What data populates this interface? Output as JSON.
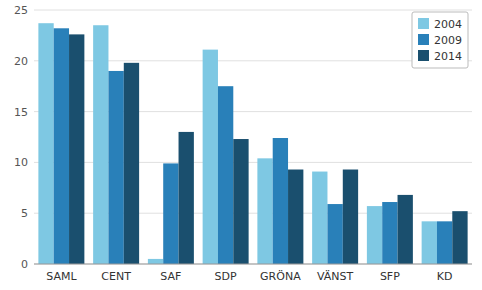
{
  "chart_data": {
    "type": "bar",
    "categories": [
      "SAML",
      "CENT",
      "SAF",
      "SDP",
      "GRÖNA",
      "VÄNST",
      "SFP",
      "KD"
    ],
    "series": [
      {
        "name": "2004",
        "color": "#7ec8e3",
        "values": [
          23.7,
          23.5,
          0.5,
          21.1,
          10.4,
          9.1,
          5.7,
          4.2
        ]
      },
      {
        "name": "2009",
        "color": "#2980b9",
        "values": [
          23.2,
          19.0,
          9.9,
          17.5,
          12.4,
          5.9,
          6.1,
          4.2
        ]
      },
      {
        "name": "2014",
        "color": "#1a4f6e",
        "values": [
          22.6,
          19.8,
          13.0,
          12.3,
          9.3,
          9.3,
          6.8,
          5.2
        ]
      }
    ],
    "ylim": [
      0,
      25
    ],
    "yticks": [
      0,
      5,
      10,
      15,
      20,
      25
    ],
    "grid": true,
    "legend": "upper right"
  }
}
